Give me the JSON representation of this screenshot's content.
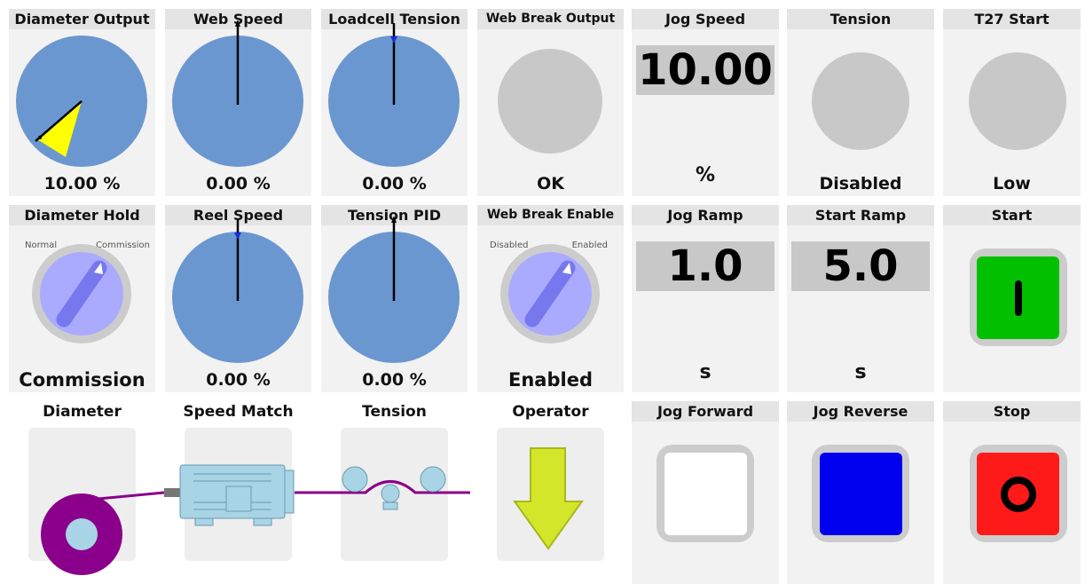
{
  "tiles": {
    "diameter_output": {
      "title": "Diameter Output",
      "value": "10.00 %",
      "level_percent": 10
    },
    "web_speed": {
      "title": "Web Speed",
      "value": "0.00 %"
    },
    "loadcell_tension": {
      "title": "Loadcell Tension",
      "value": "0.00 %"
    },
    "web_break_output": {
      "title": "Web Break Output",
      "value": "OK"
    },
    "jog_speed": {
      "title": "Jog Speed",
      "display": "10.00",
      "unit": "%"
    },
    "tension": {
      "title": "Tension",
      "value": "Disabled"
    },
    "t27_start": {
      "title": "T27 Start",
      "value": "Low"
    },
    "diameter_hold": {
      "title": "Diameter Hold",
      "left_label": "Normal",
      "right_label": "Commission",
      "value": "Commission"
    },
    "reel_speed": {
      "title": "Reel Speed",
      "value": "0.00 %"
    },
    "tension_pid": {
      "title": "Tension PID",
      "value": "0.00 %"
    },
    "web_break_enable": {
      "title": "Web Break Enable",
      "left_label": "Disabled",
      "right_label": "Enabled",
      "value": "Enabled"
    },
    "jog_ramp": {
      "title": "Jog Ramp",
      "display": "1.0",
      "unit": "s"
    },
    "start_ramp": {
      "title": "Start Ramp",
      "display": "5.0",
      "unit": "s"
    },
    "start": {
      "title": "Start",
      "symbol": "I",
      "color": "#00c000"
    },
    "jog_forward": {
      "title": "Jog Forward",
      "color": "#ffffff"
    },
    "jog_reverse": {
      "title": "Jog Reverse",
      "color": "#0000ee"
    },
    "stop": {
      "title": "Stop",
      "symbol": "O",
      "color": "#ff1a1a"
    }
  },
  "diagram": {
    "diameter": "Diameter",
    "speed_match": "Speed Match",
    "tension": "Tension",
    "operator": "Operator"
  },
  "colors": {
    "gauge_fill": "#6b97d0",
    "lamp_off": "#c8c8c8",
    "knob_face": "#aaaaff",
    "web_line": "#8a008a",
    "motor": "#a8d4e6",
    "arrow": "#d4e62a"
  }
}
